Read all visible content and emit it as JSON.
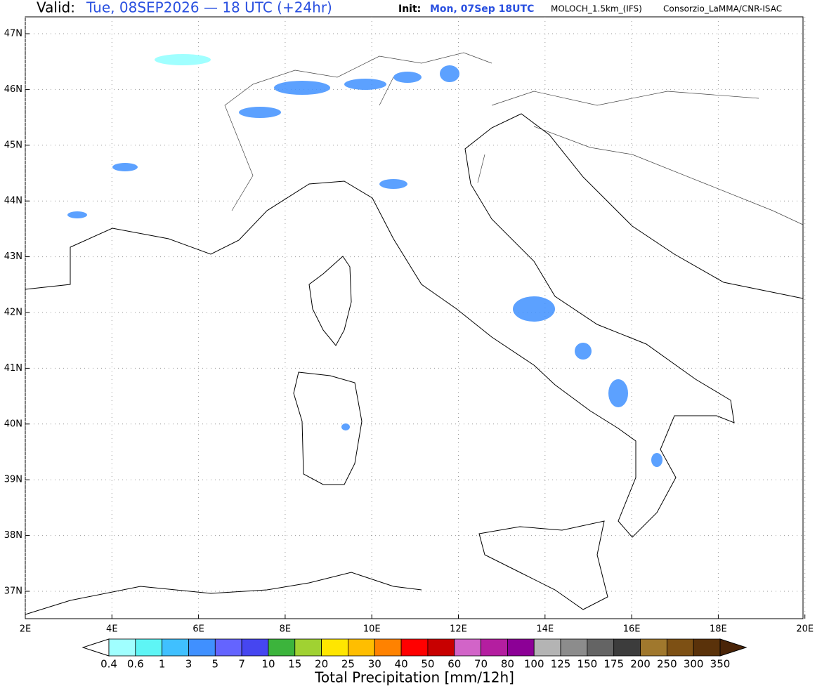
{
  "header": {
    "valid_label": "Valid:",
    "valid_time": "Tue, 08SEP2026 — 18 UTC (+24hr)",
    "init_label": "Init:",
    "init_time": "Mon, 07Sep 18UTC",
    "model": "MOLOCH_1.5km_(IFS)",
    "credit": "Consorzio_LaMMA/CNR-ISAC"
  },
  "map": {
    "lat_labels": [
      "47N",
      "46N",
      "45N",
      "44N",
      "43N",
      "42N",
      "41N",
      "40N",
      "39N",
      "38N",
      "37N"
    ],
    "lon_labels": [
      "2E",
      "4E",
      "6E",
      "8E",
      "10E",
      "12E",
      "14E",
      "16E",
      "18E",
      "20E"
    ]
  },
  "colorbar": {
    "title": "Total Precipitation [mm/12h]",
    "labels": [
      "0.4",
      "0.6",
      "1",
      "3",
      "5",
      "7",
      "10",
      "15",
      "20",
      "25",
      "30",
      "40",
      "50",
      "60",
      "70",
      "80",
      "100",
      "125",
      "150",
      "175",
      "200",
      "250",
      "300",
      "350"
    ],
    "colors": [
      "#a0ffff",
      "#5ef5f5",
      "#40c0ff",
      "#4090ff",
      "#6464ff",
      "#4646f0",
      "#3cb43c",
      "#a0d232",
      "#ffe600",
      "#ffbe00",
      "#ff8200",
      "#ff0000",
      "#c80000",
      "#d264c8",
      "#b41ea0",
      "#8c0096",
      "#b4b4b4",
      "#8c8c8c",
      "#646464",
      "#3c3c3c",
      "#a0782d",
      "#7d5014",
      "#5a320a"
    ],
    "over_color": "#4a2408"
  }
}
